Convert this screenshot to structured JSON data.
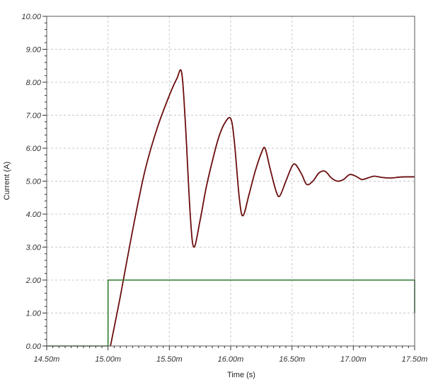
{
  "chart_data": {
    "type": "line",
    "xlabel": "Time (s)",
    "ylabel": "Current (A)",
    "xlim": [
      14.5,
      17.5
    ],
    "ylim": [
      0,
      10
    ],
    "grid": true,
    "x_ticks": [
      14.5,
      15.0,
      15.5,
      16.0,
      16.5,
      17.0,
      17.5
    ],
    "x_tick_labels": [
      "14.50m",
      "15.00m",
      "15.50m",
      "16.00m",
      "16.50m",
      "17.00m",
      "17.50m"
    ],
    "y_ticks": [
      0,
      1,
      2,
      3,
      4,
      5,
      6,
      7,
      8,
      9,
      10
    ],
    "y_tick_labels": [
      "0.00",
      "1.00",
      "2.00",
      "3.00",
      "4.00",
      "5.00",
      "6.00",
      "7.00",
      "8.00",
      "9.00",
      "10.00"
    ],
    "series": [
      {
        "color": "#6b0d0d",
        "x": [
          15.02,
          15.1,
          15.2,
          15.3,
          15.4,
          15.5,
          15.56,
          15.6,
          15.63,
          15.67,
          15.7,
          15.75,
          15.8,
          15.85,
          15.9,
          15.95,
          16.0,
          16.03,
          16.07,
          16.1,
          16.15,
          16.2,
          16.25,
          16.28,
          16.32,
          16.37,
          16.4,
          16.45,
          16.5,
          16.53,
          16.58,
          16.62,
          16.67,
          16.72,
          16.77,
          16.82,
          16.87,
          16.92,
          16.97,
          17.02,
          17.07,
          17.12,
          17.17,
          17.22,
          17.27,
          17.32,
          17.37,
          17.42,
          17.47,
          17.5
        ],
        "y": [
          0.0,
          1.5,
          3.5,
          5.3,
          6.6,
          7.6,
          8.1,
          8.3,
          6.8,
          4.0,
          3.0,
          3.8,
          4.8,
          5.6,
          6.3,
          6.75,
          6.9,
          6.2,
          4.5,
          3.95,
          4.6,
          5.3,
          5.85,
          6.0,
          5.4,
          4.7,
          4.55,
          5.0,
          5.45,
          5.5,
          5.2,
          4.9,
          5.0,
          5.25,
          5.3,
          5.1,
          5.0,
          5.05,
          5.2,
          5.15,
          5.05,
          5.1,
          5.15,
          5.12,
          5.1,
          5.1,
          5.12,
          5.13,
          5.13,
          5.13
        ]
      },
      {
        "color": "#2e7d32",
        "x": [
          14.5,
          15.0,
          15.0,
          17.5,
          17.5
        ],
        "y": [
          0,
          0,
          2,
          2,
          1
        ]
      }
    ]
  }
}
